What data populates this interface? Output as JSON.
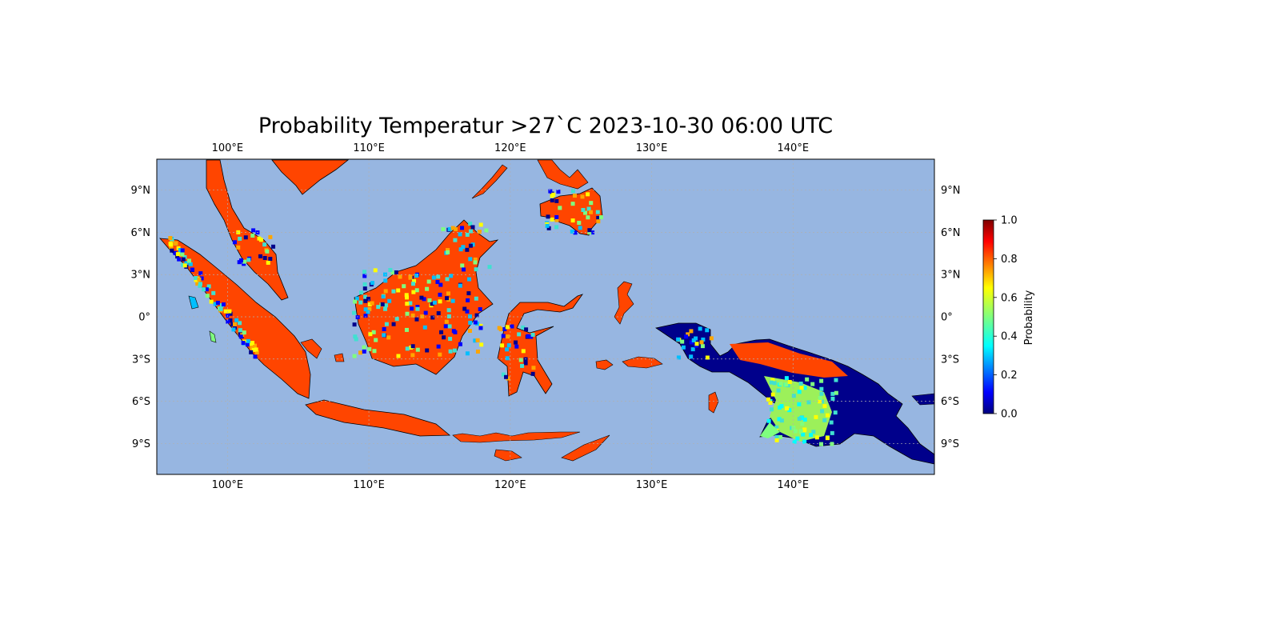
{
  "map": {
    "title": "Probability Temperatur >27`C 2023-10-30 06:00 UTC",
    "extent": {
      "lon_min": 95,
      "lon_max": 150,
      "lat_min": -11.2,
      "lat_max": 11.2
    },
    "lon_ticks": [
      {
        "value": 100,
        "label": "100°E"
      },
      {
        "value": 110,
        "label": "110°E"
      },
      {
        "value": 120,
        "label": "120°E"
      },
      {
        "value": 130,
        "label": "130°E"
      },
      {
        "value": 140,
        "label": "140°E"
      }
    ],
    "lat_ticks": [
      {
        "value": 9,
        "label": "9°N"
      },
      {
        "value": 6,
        "label": "6°N"
      },
      {
        "value": 3,
        "label": "3°N"
      },
      {
        "value": 0,
        "label": "0°"
      },
      {
        "value": -3,
        "label": "3°S"
      },
      {
        "value": -6,
        "label": "6°S"
      },
      {
        "value": -9,
        "label": "9°S"
      }
    ],
    "colors": {
      "ocean": "#97b6e1",
      "land_high": "#ff4500",
      "coast": "#000000"
    },
    "colorbar": {
      "label": "Probability",
      "ticks": [
        "0.0",
        "0.2",
        "0.4",
        "0.6",
        "0.8",
        "1.0"
      ],
      "colormap": "jet",
      "range": [
        0,
        1
      ]
    }
  }
}
